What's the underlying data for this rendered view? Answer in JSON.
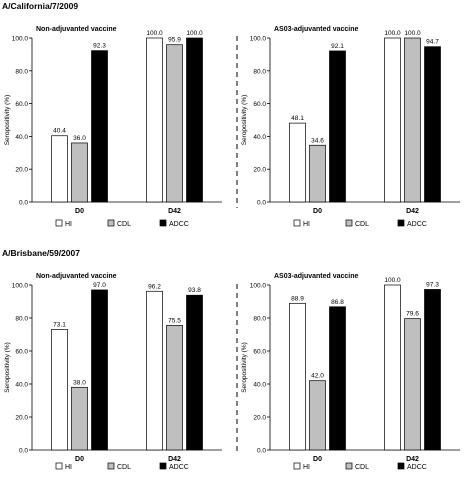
{
  "sections": [
    {
      "title": "A/California/7/2009"
    },
    {
      "title": "A/Brisbane/59/2007"
    }
  ],
  "legend_labels": [
    "HI",
    "CDL",
    "ADCC"
  ],
  "colors": {
    "HI": "#ffffff",
    "CDL": "#bfbfbf",
    "ADCC": "#000000",
    "stroke": "#000000"
  },
  "chart_data": [
    {
      "type": "bar",
      "title": "Non-adjuvanted vaccine",
      "ylabel": "Seropositivity (%)",
      "ylim": [
        0,
        100
      ],
      "yticks": [
        "0.0",
        "20.0",
        "40.0",
        "60.0",
        "80.0",
        "100.0"
      ],
      "categories": [
        "D0",
        "D42"
      ],
      "series": [
        {
          "name": "HI",
          "values": [
            40.4,
            100.0
          ],
          "labels": [
            "40.4",
            "100.0"
          ]
        },
        {
          "name": "CDL",
          "values": [
            36.0,
            95.9
          ],
          "labels": [
            "36.0",
            "95.9"
          ]
        },
        {
          "name": "ADCC",
          "values": [
            92.3,
            100.0
          ],
          "labels": [
            "92.3",
            "100.0"
          ]
        }
      ]
    },
    {
      "type": "bar",
      "title": "AS03-adjuvanted vaccine",
      "ylabel": "Seropositivity (%)",
      "ylim": [
        0,
        100
      ],
      "yticks": [
        "0.0",
        "20.0",
        "40.0",
        "60.0",
        "80.0",
        "100.0"
      ],
      "categories": [
        "D0",
        "D42"
      ],
      "series": [
        {
          "name": "HI",
          "values": [
            48.1,
            100.0
          ],
          "labels": [
            "48.1",
            "100.0"
          ]
        },
        {
          "name": "CDL",
          "values": [
            34.6,
            100.0
          ],
          "labels": [
            "34.6",
            "100.0"
          ]
        },
        {
          "name": "ADCC",
          "values": [
            92.1,
            94.7
          ],
          "labels": [
            "92.1",
            "94.7"
          ]
        }
      ]
    },
    {
      "type": "bar",
      "title": "Non-adjuvanted vaccine",
      "ylabel": "Seropositivity (%)",
      "ylim": [
        0,
        100
      ],
      "yticks": [
        "0.0",
        "20.0",
        "40.0",
        "60.0",
        "80.0",
        "100.0"
      ],
      "categories": [
        "D0",
        "D42"
      ],
      "series": [
        {
          "name": "HI",
          "values": [
            73.1,
            96.2
          ],
          "labels": [
            "73.1",
            "96.2"
          ]
        },
        {
          "name": "CDL",
          "values": [
            38.0,
            75.5
          ],
          "labels": [
            "38.0",
            "75.5"
          ]
        },
        {
          "name": "ADCC",
          "values": [
            97.0,
            93.8
          ],
          "labels": [
            "97.0",
            "93.8"
          ]
        }
      ]
    },
    {
      "type": "bar",
      "title": "AS03-adjuvanted vaccine",
      "ylabel": "Seropositivity (%)",
      "ylim": [
        0,
        100
      ],
      "yticks": [
        "0.0",
        "20.0",
        "40.0",
        "60.0",
        "80.0",
        "100.0"
      ],
      "categories": [
        "D0",
        "D42"
      ],
      "series": [
        {
          "name": "HI",
          "values": [
            88.9,
            100.0
          ],
          "labels": [
            "88.9",
            "100.0"
          ]
        },
        {
          "name": "CDL",
          "values": [
            42.0,
            79.6
          ],
          "labels": [
            "42.0",
            "79.6"
          ]
        },
        {
          "name": "ADCC",
          "values": [
            86.8,
            97.3
          ],
          "labels": [
            "86.8",
            "97.3"
          ]
        }
      ]
    }
  ]
}
